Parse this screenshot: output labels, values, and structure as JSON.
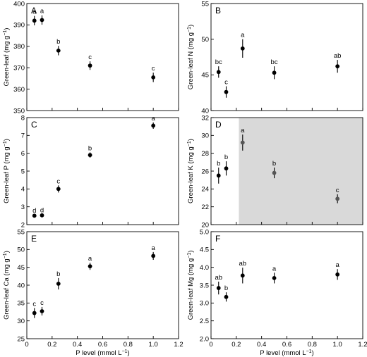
{
  "chart_data": [
    {
      "type": "scatter",
      "panel_label": "A",
      "ylabel_main": "Green-leaf",
      "ylabel_unit": "(mg g",
      "ylabel_exp": "−1",
      "ylabel_close": ")",
      "ylim": [
        350,
        400
      ],
      "yticks": [
        350,
        360,
        370,
        380,
        390,
        400
      ],
      "x": [
        0.06,
        0.12,
        0.25,
        0.5,
        1.0
      ],
      "y": [
        392,
        392.3,
        378,
        371,
        365.5
      ],
      "err": [
        2.2,
        2.2,
        2.2,
        2.0,
        2.2
      ],
      "letters": [
        "a",
        "a",
        "b",
        "c",
        "c"
      ],
      "point_colors": [
        "#000000",
        "#000000",
        "#000000",
        "#000000",
        "#000000"
      ]
    },
    {
      "type": "scatter",
      "panel_label": "B",
      "ylabel_main": "Green-leaf N",
      "ylabel_unit": "(mg g",
      "ylabel_exp": "−1",
      "ylabel_close": ")",
      "ylim": [
        40,
        55
      ],
      "yticks": [
        40,
        45,
        50,
        55
      ],
      "x": [
        0.06,
        0.12,
        0.25,
        0.5,
        1.0
      ],
      "y": [
        45.4,
        42.6,
        48.7,
        45.3,
        46.2
      ],
      "err": [
        0.8,
        0.8,
        1.3,
        0.9,
        0.9
      ],
      "letters": [
        "bc",
        "c",
        "a",
        "bc",
        "ab"
      ],
      "point_colors": [
        "#000000",
        "#000000",
        "#000000",
        "#000000",
        "#000000"
      ]
    },
    {
      "type": "scatter",
      "panel_label": "C",
      "ylabel_main": "Green-leaf P",
      "ylabel_unit": "(mg g",
      "ylabel_exp": "−1",
      "ylabel_close": ")",
      "ylim": [
        2,
        8
      ],
      "yticks": [
        2,
        3,
        4,
        5,
        6,
        7,
        8
      ],
      "x": [
        0.06,
        0.12,
        0.25,
        0.5,
        1.0
      ],
      "y": [
        2.5,
        2.52,
        4.0,
        5.9,
        7.55
      ],
      "err": [
        0.06,
        0.06,
        0.2,
        0.15,
        0.18
      ],
      "letters": [
        "d",
        "d",
        "c",
        "b",
        "a"
      ],
      "point_colors": [
        "#000000",
        "#000000",
        "#000000",
        "#000000",
        "#000000"
      ]
    },
    {
      "type": "scatter",
      "panel_label": "D",
      "ylabel_main": "Green-leaf K",
      "ylabel_unit": "(mg g",
      "ylabel_exp": "−1",
      "ylabel_close": ")",
      "ylim": [
        20,
        32
      ],
      "yticks": [
        20,
        22,
        24,
        26,
        28,
        30,
        32
      ],
      "x": [
        0.06,
        0.12,
        0.25,
        0.5,
        1.0
      ],
      "y": [
        25.5,
        26.3,
        29.2,
        25.8,
        22.9
      ],
      "err": [
        0.9,
        0.8,
        0.9,
        0.6,
        0.5
      ],
      "letters": [
        "b",
        "b",
        "a",
        "b",
        "c"
      ],
      "point_colors": [
        "#000000",
        "#000000",
        "#555555",
        "#555555",
        "#555555"
      ],
      "shaded_from_x": 0.22
    },
    {
      "type": "scatter",
      "panel_label": "E",
      "ylabel_main": "Green-leaf Ca",
      "ylabel_unit": "(mg g",
      "ylabel_exp": "−1",
      "ylabel_close": ")",
      "ylim": [
        25,
        55
      ],
      "yticks": [
        25,
        30,
        35,
        40,
        45,
        50,
        55
      ],
      "x": [
        0.06,
        0.12,
        0.25,
        0.5,
        1.0
      ],
      "y": [
        32.2,
        32.7,
        40.4,
        45.3,
        48.2
      ],
      "err": [
        1.4,
        1.2,
        1.6,
        1.0,
        1.1
      ],
      "letters": [
        "c",
        "c",
        "b",
        "a",
        "a"
      ],
      "point_colors": [
        "#000000",
        "#000000",
        "#000000",
        "#000000",
        "#000000"
      ]
    },
    {
      "type": "scatter",
      "panel_label": "F",
      "ylabel_main": "Green-leaf Mg",
      "ylabel_unit": "(mg g",
      "ylabel_exp": "−1",
      "ylabel_close": ")",
      "ylim": [
        2.0,
        5.0
      ],
      "yticks": [
        2.0,
        2.5,
        3.0,
        3.5,
        4.0,
        4.5,
        5.0
      ],
      "x": [
        0.06,
        0.12,
        0.25,
        0.5,
        1.0
      ],
      "y": [
        3.42,
        3.17,
        3.77,
        3.7,
        3.8
      ],
      "err": [
        0.18,
        0.13,
        0.22,
        0.15,
        0.15
      ],
      "letters": [
        "ab",
        "b",
        "ab",
        "a",
        "a"
      ],
      "point_colors": [
        "#000000",
        "#000000",
        "#000000",
        "#000000",
        "#000000"
      ]
    }
  ],
  "x_axis": {
    "label_main": "P level (mmol L",
    "label_exp": "−1",
    "label_close": ")",
    "xlim": [
      0,
      1.2
    ],
    "ticks": [
      0,
      0.2,
      0.4,
      0.6,
      0.8,
      1.0,
      1.2
    ],
    "tick_labels": [
      "0",
      "0.2",
      "0.4",
      "0.6",
      "0.8",
      "1.0",
      "1.2"
    ]
  },
  "colors": {
    "shade": "#d9d9d9",
    "marker": "#000000",
    "marker_shaded": "#555555"
  }
}
